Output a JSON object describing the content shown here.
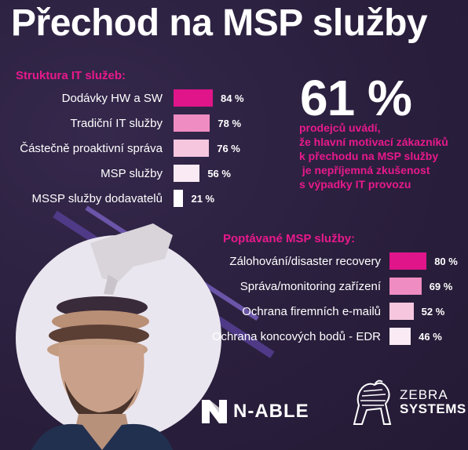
{
  "title": "Přechod na MSP služby",
  "stat": {
    "value": "61 %",
    "lines": [
      "prodejců uvádí,",
      "že hlavní motivací zákazníků",
      "k přechodu na MSP služby",
      " je nepříjemná zkušenost",
      "s výpadky IT provozu"
    ]
  },
  "chart_data": [
    {
      "type": "bar",
      "orientation": "horizontal",
      "title": "Struktura IT služeb:",
      "categories": [
        "Dodávky HW a SW",
        "Tradiční IT služby",
        "Částečně proaktivní správa",
        "MSP služby",
        "MSSP služby dodavatelů"
      ],
      "values": [
        84,
        78,
        76,
        56,
        21
      ],
      "value_labels": [
        "84 %",
        "78 %",
        "76 %",
        "56 %",
        "21 %"
      ],
      "colors": [
        "#e0158a",
        "#ef8cc1",
        "#f6c6df",
        "#faeaf3",
        "#ffffff"
      ]
    },
    {
      "type": "bar",
      "orientation": "horizontal",
      "title": "Poptávané MSP služby:",
      "categories": [
        "Zálohování/disaster recovery",
        "Správa/monitoring zařízení",
        "Ochrana firemních e-mailů",
        "Ochrana koncových bodů - EDR"
      ],
      "values": [
        80,
        69,
        52,
        46
      ],
      "value_labels": [
        "80 %",
        "69 %",
        "52 %",
        "46 %"
      ],
      "colors": [
        "#e0158a",
        "#ef8cc1",
        "#f6c6df",
        "#faeaf3"
      ]
    }
  ],
  "logos": {
    "nable": "N-ABLE",
    "zebra_line1": "ZEBRA",
    "zebra_line2": "SYSTEMS"
  },
  "icons": [
    "nable-logo-icon",
    "zebra-icon"
  ],
  "accent": "#e8198c",
  "background": "#2a1f3d"
}
